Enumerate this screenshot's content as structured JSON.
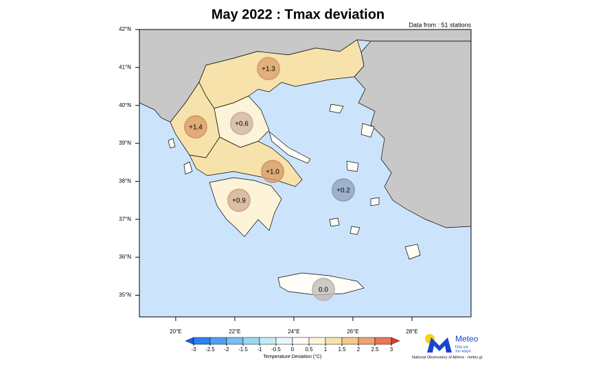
{
  "title": "May 2022 : Tmax deviation",
  "note": "Data from : 51 stations",
  "map": {
    "lat_ticks": [
      {
        "value": 42,
        "label": "42°N"
      },
      {
        "value": 41,
        "label": "41°N"
      },
      {
        "value": 40,
        "label": "40°N"
      },
      {
        "value": 39,
        "label": "39°N"
      },
      {
        "value": 38,
        "label": "38°N"
      },
      {
        "value": 37,
        "label": "37°N"
      },
      {
        "value": 36,
        "label": "36°N"
      },
      {
        "value": 35,
        "label": "35°N"
      }
    ],
    "lon_ticks": [
      {
        "value": 20,
        "label": "20°E"
      },
      {
        "value": 22,
        "label": "22°E"
      },
      {
        "value": 24,
        "label": "24°E"
      },
      {
        "value": 26,
        "label": "26°E"
      },
      {
        "value": 28,
        "label": "28°E"
      }
    ],
    "lat_range": [
      34.43,
      42
    ],
    "lon_range": [
      18.77,
      30
    ],
    "regions": [
      {
        "value": 1.3,
        "label": "+1.3",
        "color": "#d9a06e"
      },
      {
        "value": 1.4,
        "label": "+1.4",
        "color": "#d89a66"
      },
      {
        "value": 0.6,
        "label": "+0.6",
        "color": "#cdb3a0"
      },
      {
        "value": 1.0,
        "label": "+1.0",
        "color": "#d49a68"
      },
      {
        "value": 0.9,
        "label": "+0.9",
        "color": "#d1ac90"
      },
      {
        "value": 0.2,
        "label": "+0.2",
        "color": "#8fa1bd"
      },
      {
        "value": 0,
        "label": "0.0",
        "color": "#bdb8b6"
      }
    ]
  },
  "colorbar": {
    "ticks": [
      -3,
      -2.5,
      -2,
      -1.5,
      -1,
      -0.5,
      0,
      0.5,
      1,
      1.5,
      2,
      2.5,
      3
    ],
    "colors": [
      "#1f5cf2",
      "#2e7ff6",
      "#4f9ff7",
      "#78bef6",
      "#9cd7f5",
      "#c3ebf6",
      "#e6f7fa",
      "#fffdf6",
      "#fcf3d9",
      "#f7e2ab",
      "#f4c888",
      "#f0a270",
      "#eb7758",
      "#e43a2e"
    ],
    "label": "Temperature Deviation (°C)"
  },
  "logo": {
    "name": "Meteo",
    "tagline_1": "Όλα για",
    "tagline_2": "τον καιρό",
    "credit": "National Observatory of Athens · meteo.gr"
  }
}
